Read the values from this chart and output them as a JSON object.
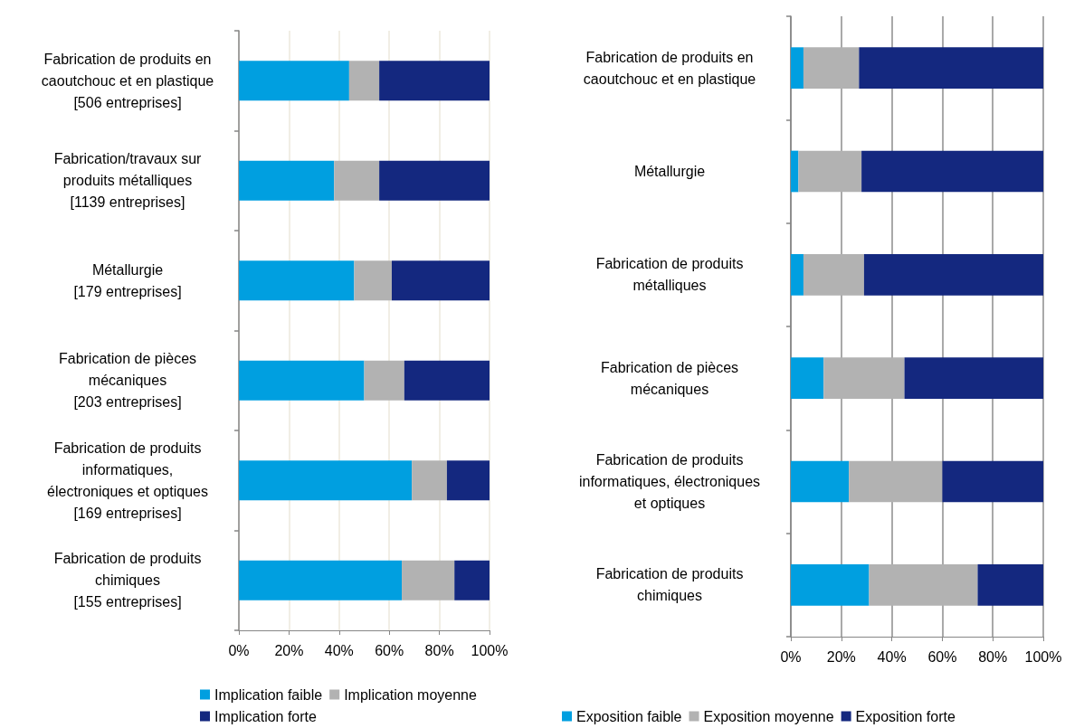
{
  "chart_data": [
    {
      "type": "bar",
      "orientation": "horizontal",
      "stacked": true,
      "categories": [
        "Fabrication de produits en\ncaoutchouc et en plastique\n[506 entreprises]",
        "Fabrication/travaux sur\nproduits métalliques\n[1139 entreprises]",
        "Métallurgie\n[179 entreprises]",
        "Fabrication de pièces\nmécaniques\n[203 entreprises]",
        "Fabrication de produits\ninformatiques,\nélectroniques et optiques\n[169 entreprises]",
        "Fabrication de produits\nchimiques\n[155 entreprises]"
      ],
      "series": [
        {
          "name": "Implication faible",
          "color": "#009fe0",
          "values": [
            44,
            38,
            46,
            50,
            69,
            65
          ]
        },
        {
          "name": "Implication moyenne",
          "color": "#b2b2b2",
          "values": [
            12,
            18,
            15,
            16,
            14,
            21
          ]
        },
        {
          "name": "Implication forte",
          "color": "#14287f",
          "values": [
            44,
            44,
            39,
            34,
            17,
            14
          ]
        }
      ],
      "xlim": [
        0,
        100
      ],
      "xticks": [
        {
          "value": 0,
          "label": "0%"
        },
        {
          "value": 20,
          "label": "20%"
        },
        {
          "value": 40,
          "label": "40%"
        },
        {
          "value": 60,
          "label": "60%"
        },
        {
          "value": 80,
          "label": "80%"
        },
        {
          "value": 100,
          "label": "100%"
        }
      ],
      "grid": "x",
      "legend": "bottom"
    },
    {
      "type": "bar",
      "orientation": "horizontal",
      "stacked": true,
      "categories": [
        "Fabrication de produits en\ncaoutchouc et en plastique",
        "Métallurgie",
        "Fabrication de produits\nmétalliques",
        "Fabrication de pièces\nmécaniques",
        "Fabrication de produits\ninformatiques, électroniques\net optiques",
        "Fabrication de produits\nchimiques"
      ],
      "series": [
        {
          "name": "Exposition faible",
          "color": "#009fe0",
          "values": [
            5,
            3,
            5,
            13,
            23,
            31
          ]
        },
        {
          "name": "Exposition moyenne",
          "color": "#b2b2b2",
          "values": [
            22,
            25,
            24,
            32,
            37,
            43
          ]
        },
        {
          "name": "Exposition forte",
          "color": "#14287f",
          "values": [
            73,
            72,
            71,
            55,
            40,
            26
          ]
        }
      ],
      "xlim": [
        0,
        100
      ],
      "xticks": [
        {
          "value": 0,
          "label": "0%"
        },
        {
          "value": 20,
          "label": "20%"
        },
        {
          "value": 40,
          "label": "40%"
        },
        {
          "value": 60,
          "label": "60%"
        },
        {
          "value": 80,
          "label": "80%"
        },
        {
          "value": 100,
          "label": "100%"
        }
      ],
      "grid": "x",
      "legend": "bottom"
    }
  ]
}
